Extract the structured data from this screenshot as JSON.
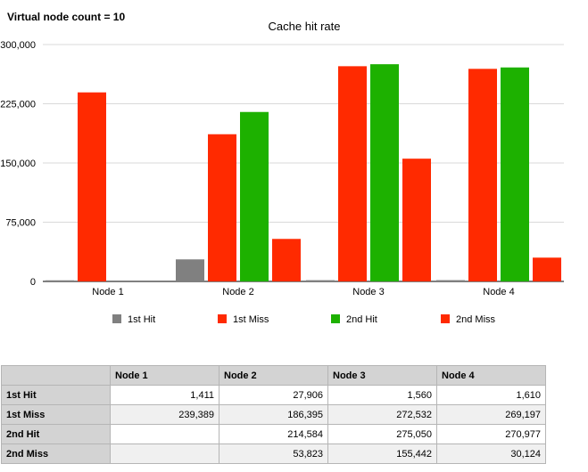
{
  "heading": "Virtual node count = 10",
  "chart_data": {
    "type": "bar",
    "title": "Cache hit rate",
    "xlabel": "",
    "ylabel": "",
    "categories": [
      "Node 1",
      "Node 2",
      "Node 3",
      "Node 4"
    ],
    "ylim": [
      0,
      300000
    ],
    "yticks": [
      0,
      75000,
      150000,
      225000,
      300000
    ],
    "ytick_labels": [
      "0",
      "75,000",
      "150,000",
      "225,000",
      "300,000"
    ],
    "grid": true,
    "legend_position": "bottom",
    "series": [
      {
        "name": "1st Hit",
        "color": "#808080",
        "values": [
          1411,
          27906,
          1560,
          1610
        ]
      },
      {
        "name": "1st Miss",
        "color": "#ff2a00",
        "values": [
          239389,
          186395,
          272532,
          269197
        ]
      },
      {
        "name": "2nd Hit",
        "color": "#1db100",
        "values": [
          null,
          214584,
          275050,
          270977
        ]
      },
      {
        "name": "2nd Miss",
        "color": "#ff2a00",
        "values": [
          null,
          53823,
          155442,
          30124
        ]
      }
    ]
  },
  "table": {
    "columns": [
      "",
      "Node 1",
      "Node 2",
      "Node 3",
      "Node 4"
    ],
    "rows": [
      {
        "label": "1st Hit",
        "cells": [
          "1,411",
          "27,906",
          "1,560",
          "1,610"
        ]
      },
      {
        "label": "1st Miss",
        "cells": [
          "239,389",
          "186,395",
          "272,532",
          "269,197"
        ]
      },
      {
        "label": "2nd Hit",
        "cells": [
          "",
          "214,584",
          "275,050",
          "270,977"
        ]
      },
      {
        "label": "2nd Miss",
        "cells": [
          "",
          "53,823",
          "155,442",
          "30,124"
        ]
      }
    ]
  }
}
